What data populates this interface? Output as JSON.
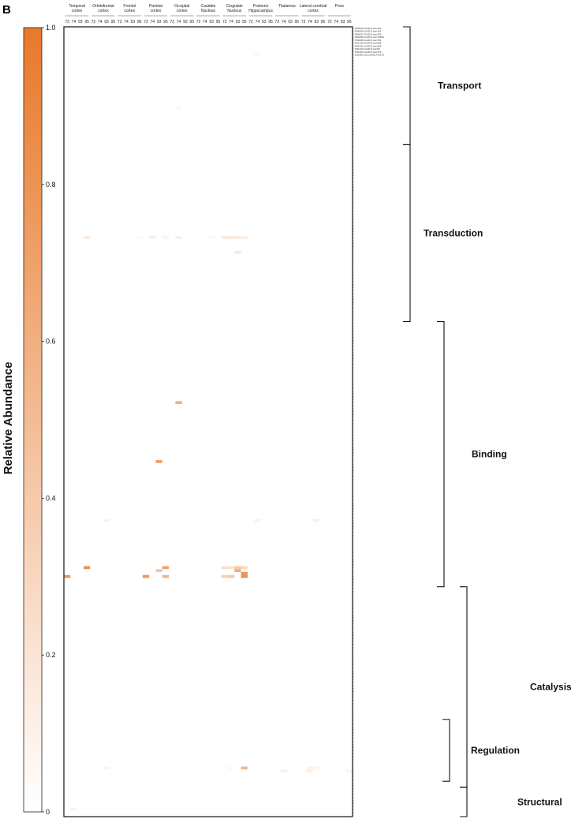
{
  "panel_letter": "B",
  "chart_data": {
    "type": "heatmap",
    "title": "",
    "colorbar": {
      "label": "Relative Abundance",
      "ticks": [
        "1.0",
        "0.8",
        "0.6",
        "0.4",
        "0.2",
        "0"
      ],
      "min": 0,
      "max": 1,
      "color_low": "#ffffff",
      "color_high": "#e8792a"
    },
    "regions": [
      {
        "name": "Temporal cortex",
        "ages": [
          "72",
          "74",
          "93",
          "95"
        ]
      },
      {
        "name": "Orbitofrontal cortex",
        "ages": [
          "72",
          "74",
          "93",
          "95"
        ]
      },
      {
        "name": "Frontal cortex",
        "ages": [
          "72",
          "74",
          "93",
          "95"
        ]
      },
      {
        "name": "Parietal cortex",
        "ages": [
          "72",
          "74",
          "93",
          "95"
        ]
      },
      {
        "name": "Occipital cortex",
        "ages": [
          "72",
          "74",
          "93",
          "95"
        ]
      },
      {
        "name": "Caudate Nucleus",
        "ages": [
          "72",
          "74",
          "93",
          "95"
        ]
      },
      {
        "name": "Cingulate Nucleus",
        "ages": [
          "72",
          "74",
          "93",
          "95"
        ]
      },
      {
        "name": "Posterior Hippocampus",
        "ages": [
          "72",
          "74",
          "93",
          "95"
        ]
      },
      {
        "name": "Thalamus",
        "ages": [
          "72",
          "74",
          "93",
          "95"
        ]
      },
      {
        "name": "Lateral cerebral cortex",
        "ages": [
          "72",
          "74",
          "93",
          "95"
        ]
      },
      {
        "name": "Pons",
        "ages": [
          "72",
          "74",
          "93",
          "95"
        ]
      }
    ],
    "n_rows": 268,
    "row_labels": [
      "P84095 (GAD1):Asn491",
      "P84096 (GAD1):Asn324",
      "P84097 (GAD1):Asn475",
      "P84098 (GAD1):Asn75950",
      "P84099 (GAD1):Asn761",
      "P84100 (GAD1):Asn898",
      "P84101 (GAD1):Asn900",
      "P84102 (GAD1):Asn55",
      "P84103 (GAD1):Asn473",
      "Q18081 (SLC6A5):Asn272"
    ],
    "categories": [
      {
        "name": "Transport",
        "start_row": 0,
        "end_row": 40
      },
      {
        "name": "Transduction",
        "start_row": 40,
        "end_row": 100
      },
      {
        "name": "Binding",
        "start_row": 100,
        "end_row": 190
      },
      {
        "name": "Catalysis",
        "start_row": 190,
        "end_row": 258
      },
      {
        "name": "Regulation",
        "start_row": 235,
        "end_row": 256
      },
      {
        "name": "Structural",
        "start_row": 258,
        "end_row": 268
      }
    ],
    "cells": [
      {
        "col": 29,
        "row": 9,
        "value": 0.06
      },
      {
        "col": 17,
        "row": 27,
        "value": 0.07
      },
      {
        "col": 3,
        "row": 71,
        "value": 0.16
      },
      {
        "col": 13,
        "row": 71,
        "value": 0.14
      },
      {
        "col": 15,
        "row": 71,
        "value": 0.08
      },
      {
        "col": 17,
        "row": 71,
        "value": 0.14
      },
      {
        "col": 11,
        "row": 71,
        "value": 0.06
      },
      {
        "col": 24,
        "row": 71,
        "value": 0.16
      },
      {
        "col": 25,
        "row": 71,
        "value": 0.18
      },
      {
        "col": 26,
        "row": 71,
        "value": 0.15
      },
      {
        "col": 27,
        "row": 71,
        "value": 0.12
      },
      {
        "col": 22,
        "row": 71,
        "value": 0.06
      },
      {
        "col": 26,
        "row": 76,
        "value": 0.18
      },
      {
        "col": 17,
        "row": 127,
        "value": 0.6
      },
      {
        "col": 14,
        "row": 147,
        "value": 0.72
      },
      {
        "col": 6,
        "row": 167,
        "value": 0.1
      },
      {
        "col": 29,
        "row": 167,
        "value": 0.1
      },
      {
        "col": 38,
        "row": 167,
        "value": 0.12
      },
      {
        "col": 3,
        "row": 183,
        "value": 0.82
      },
      {
        "col": 0,
        "row": 186,
        "value": 0.78
      },
      {
        "col": 15,
        "row": 183,
        "value": 0.7
      },
      {
        "col": 14,
        "row": 184,
        "value": 0.45
      },
      {
        "col": 12,
        "row": 186,
        "value": 0.78
      },
      {
        "col": 15,
        "row": 186,
        "value": 0.55
      },
      {
        "col": 24,
        "row": 183,
        "value": 0.25
      },
      {
        "col": 25,
        "row": 183,
        "value": 0.22
      },
      {
        "col": 26,
        "row": 183,
        "value": 0.4
      },
      {
        "col": 27,
        "row": 183,
        "value": 0.3
      },
      {
        "col": 26,
        "row": 184,
        "value": 0.6
      },
      {
        "col": 27,
        "row": 185,
        "value": 0.8
      },
      {
        "col": 27,
        "row": 186,
        "value": 0.82
      },
      {
        "col": 24,
        "row": 186,
        "value": 0.35
      },
      {
        "col": 25,
        "row": 186,
        "value": 0.4
      },
      {
        "col": 6,
        "row": 251,
        "value": 0.08
      },
      {
        "col": 25,
        "row": 251,
        "value": 0.06
      },
      {
        "col": 27,
        "row": 251,
        "value": 0.55
      },
      {
        "col": 33,
        "row": 252,
        "value": 0.12
      },
      {
        "col": 37,
        "row": 251,
        "value": 0.1
      },
      {
        "col": 37,
        "row": 252,
        "value": 0.12
      },
      {
        "col": 38,
        "row": 251,
        "value": 0.08
      },
      {
        "col": 43,
        "row": 252,
        "value": 0.1
      },
      {
        "col": 1,
        "row": 265,
        "value": 0.1
      }
    ]
  }
}
